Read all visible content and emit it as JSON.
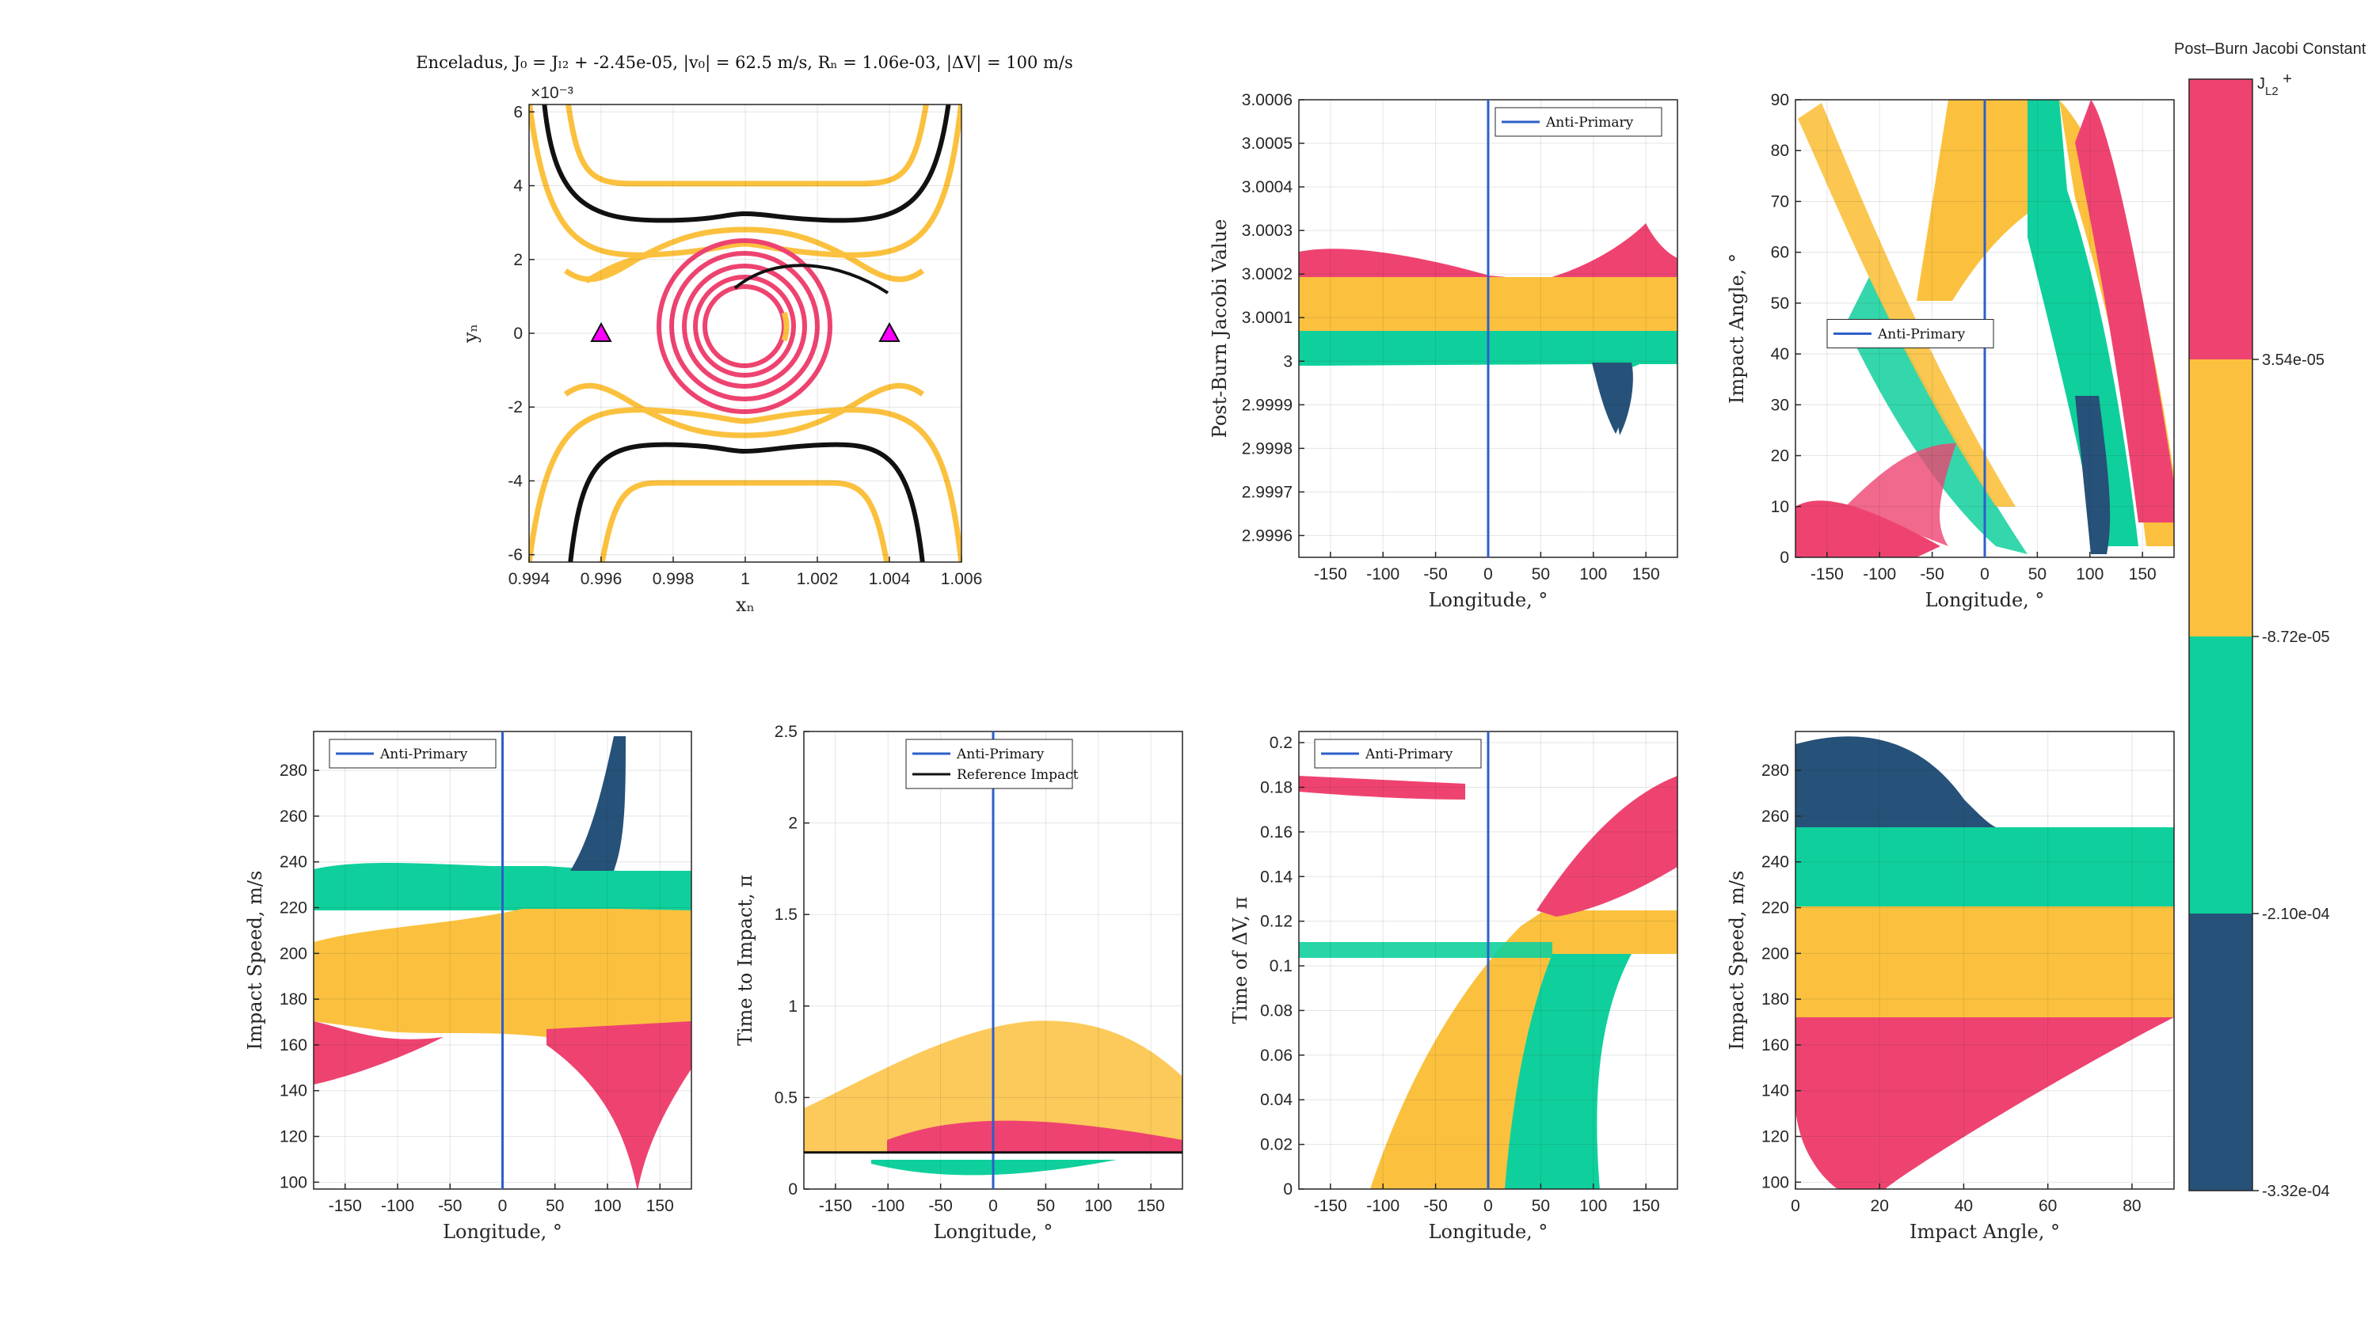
{
  "figure": {
    "title": "Enceladus,     J₀ = Jₗ₂ + -2.45e-05,     |v₀| = 62.5 m/s,     Rₙ = 1.06e-03,     |ΔV| = 100 m/s",
    "colors": {
      "pink": "#EE4370",
      "yellow": "#FBC13E",
      "green": "#0FD09C",
      "navy": "#265179",
      "blue": "#2E5FC9",
      "black": "#111111",
      "magenta": "#FF00FF"
    }
  },
  "colorbar": {
    "title": "Post–Burn Jacobi Constant",
    "top_label": "J",
    "top_label_sub": "L2",
    "top_label_suffix": " +",
    "tick_labels": [
      "3.54e-05",
      "-8.72e-05",
      "-2.10e-04",
      "-3.32e-04"
    ],
    "bands": [
      "pink",
      "yellow",
      "green",
      "navy"
    ]
  },
  "chart_data": [
    {
      "id": "orbit",
      "type": "line",
      "title": "Enceladus,     J₀ = Jₗ₂ + -2.45e-05,     |v₀| = 62.5 m/s,     Rₙ = 1.06e-03,     |ΔV| = 100 m/s",
      "xlabel": "xₙ",
      "ylabel": "yₙ",
      "xlim": [
        0.994,
        1.006
      ],
      "ylim": [
        -6.2,
        6.2
      ],
      "y_exponent": "×10⁻³",
      "xticks": [
        0.994,
        0.996,
        0.998,
        1,
        1.002,
        1.004,
        1.006
      ],
      "xtick_labels": [
        "0.994",
        "0.996",
        "0.998",
        "1",
        "1.002",
        "1.004",
        "1.006"
      ],
      "yticks": [
        -6,
        -4,
        -2,
        0,
        2,
        4,
        6
      ],
      "ytick_labels": [
        "-6",
        "-4",
        "-2",
        "0",
        "2",
        "4",
        "6"
      ],
      "markers": [
        {
          "x": 0.996,
          "y": 0,
          "symbol": "triangle"
        },
        {
          "x": 1.004,
          "y": 0,
          "symbol": "triangle"
        }
      ],
      "grid": true
    },
    {
      "id": "jacobi_vs_lon",
      "type": "scatter",
      "xlabel": "Longitude, °",
      "ylabel": "Post-Burn Jacobi Value",
      "xlim": [
        -180,
        180
      ],
      "ylim": [
        2.99955,
        3.0006
      ],
      "xticks": [
        -150,
        -100,
        -50,
        0,
        50,
        100,
        150
      ],
      "xtick_labels": [
        "-150",
        "-100",
        "-50",
        "0",
        "50",
        "100",
        "150"
      ],
      "yticks": [
        2.9996,
        2.9997,
        2.9998,
        2.9999,
        3,
        3.0001,
        3.0002,
        3.0003,
        3.0004,
        3.0005,
        3.0006
      ],
      "ytick_labels": [
        "2.9996",
        "2.9997",
        "2.9998",
        "2.9999",
        "3",
        "3.0001",
        "3.0002",
        "3.0003",
        "3.0004",
        "3.0005",
        "3.0006"
      ],
      "legend": [
        "Anti-Primary"
      ],
      "legend_position": "top-right",
      "vline_x": 0,
      "grid": true
    },
    {
      "id": "angle_vs_lon",
      "type": "scatter",
      "xlabel": "Longitude, °",
      "ylabel": "Impact Angle, °",
      "xlim": [
        -180,
        180
      ],
      "ylim": [
        0,
        90
      ],
      "xticks": [
        -150,
        -100,
        -50,
        0,
        50,
        100,
        150
      ],
      "xtick_labels": [
        "-150",
        "-100",
        "-50",
        "0",
        "50",
        "100",
        "150"
      ],
      "yticks": [
        0,
        10,
        20,
        30,
        40,
        50,
        60,
        70,
        80,
        90
      ],
      "ytick_labels": [
        "0",
        "10",
        "20",
        "30",
        "40",
        "50",
        "60",
        "70",
        "80",
        "90"
      ],
      "legend": [
        "Anti-Primary"
      ],
      "legend_position": "center-left",
      "vline_x": 0,
      "grid": true
    },
    {
      "id": "speed_vs_lon",
      "type": "scatter",
      "xlabel": "Longitude, °",
      "ylabel": "Impact Speed, m/s",
      "xlim": [
        -180,
        180
      ],
      "ylim": [
        97,
        297
      ],
      "xticks": [
        -150,
        -100,
        -50,
        0,
        50,
        100,
        150
      ],
      "xtick_labels": [
        "-150",
        "-100",
        "-50",
        "0",
        "50",
        "100",
        "150"
      ],
      "yticks": [
        100,
        120,
        140,
        160,
        180,
        200,
        220,
        240,
        260,
        280
      ],
      "ytick_labels": [
        "100",
        "120",
        "140",
        "160",
        "180",
        "200",
        "220",
        "240",
        "260",
        "280"
      ],
      "legend": [
        "Anti-Primary"
      ],
      "legend_position": "top-left",
      "vline_x": 0,
      "grid": true
    },
    {
      "id": "time_vs_lon",
      "type": "scatter",
      "xlabel": "Longitude, °",
      "ylabel": "Time to Impact, π",
      "xlim": [
        -180,
        180
      ],
      "ylim": [
        0,
        2.5
      ],
      "xticks": [
        -150,
        -100,
        -50,
        0,
        50,
        100,
        150
      ],
      "xtick_labels": [
        "-150",
        "-100",
        "-50",
        "0",
        "50",
        "100",
        "150"
      ],
      "yticks": [
        0,
        0.5,
        1,
        1.5,
        2,
        2.5
      ],
      "ytick_labels": [
        "0",
        "0.5",
        "1",
        "1.5",
        "2",
        "2.5"
      ],
      "legend": [
        "Anti-Primary",
        "Reference Impact"
      ],
      "legend_position": "top-center",
      "vline_x": 0,
      "reference_y": 0.2,
      "grid": true
    },
    {
      "id": "dv_time_vs_lon",
      "type": "scatter",
      "xlabel": "Longitude, °",
      "ylabel": "Time of ΔV, π",
      "xlim": [
        -180,
        180
      ],
      "ylim": [
        0,
        0.205
      ],
      "xticks": [
        -150,
        -100,
        -50,
        0,
        50,
        100,
        150
      ],
      "xtick_labels": [
        "-150",
        "-100",
        "-50",
        "0",
        "50",
        "100",
        "150"
      ],
      "yticks": [
        0,
        0.02,
        0.04,
        0.06,
        0.08,
        0.1,
        0.12,
        0.14,
        0.16,
        0.18,
        0.2
      ],
      "ytick_labels": [
        "0",
        "0.02",
        "0.04",
        "0.06",
        "0.08",
        "0.1",
        "0.12",
        "0.14",
        "0.16",
        "0.18",
        "0.2"
      ],
      "legend": [
        "Anti-Primary"
      ],
      "legend_position": "top-left",
      "vline_x": 0,
      "grid": true
    },
    {
      "id": "speed_vs_angle",
      "type": "scatter",
      "xlabel": "Impact Angle, °",
      "ylabel": "Impact Speed, m/s",
      "xlim": [
        0,
        90
      ],
      "ylim": [
        97,
        297
      ],
      "xticks": [
        0,
        20,
        40,
        60,
        80
      ],
      "xtick_labels": [
        "0",
        "20",
        "40",
        "60",
        "80"
      ],
      "yticks": [
        100,
        120,
        140,
        160,
        180,
        200,
        220,
        240,
        260,
        280
      ],
      "ytick_labels": [
        "100",
        "120",
        "140",
        "160",
        "180",
        "200",
        "220",
        "240",
        "260",
        "280"
      ],
      "grid": true
    }
  ]
}
